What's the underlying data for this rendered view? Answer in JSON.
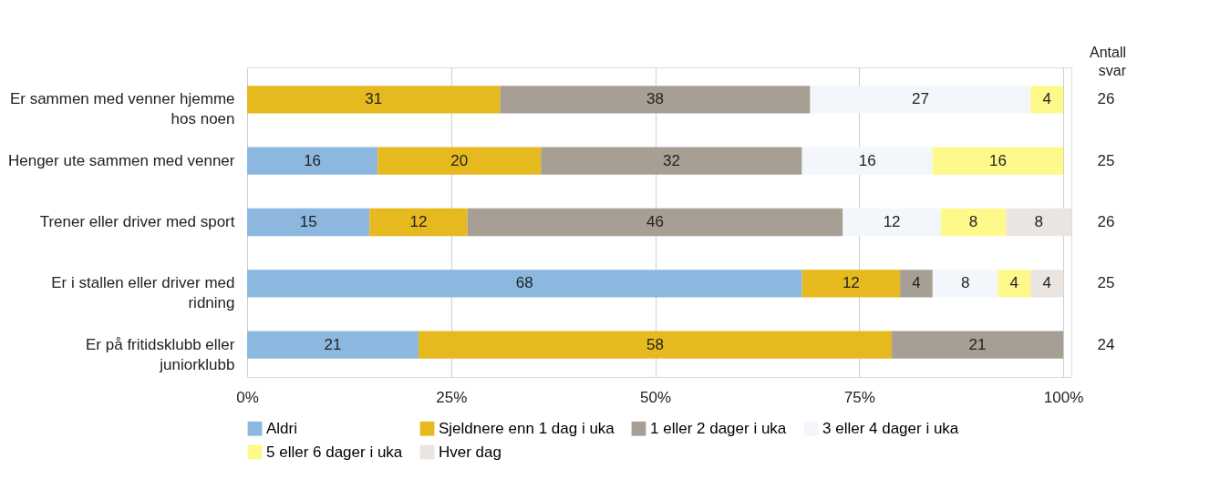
{
  "chart_data": {
    "type": "bar",
    "orientation": "horizontal",
    "stacked": true,
    "data_labels": true,
    "grid": "x",
    "legend": "bottom",
    "categories": [
      "Er sammen med venner hjemme hos noen",
      "Henger ute sammen med venner",
      "Trener eller driver med sport",
      "Er i stallen eller driver med ridning",
      "Er på fritidsklubb eller juniorklubb"
    ],
    "y2_categories": [
      "26",
      "25",
      "26",
      "25",
      "24"
    ],
    "y2label": "Antall svar",
    "xlim": [
      0,
      101
    ],
    "xticks": [
      {
        "value": 0,
        "label": "0%"
      },
      {
        "value": 25,
        "label": "25%"
      },
      {
        "value": 50,
        "label": "50%"
      },
      {
        "value": 75,
        "label": "75%"
      },
      {
        "value": 100,
        "label": "100%"
      }
    ],
    "series": [
      {
        "name": "Aldri",
        "color": "#8cb8e0",
        "values": [
          null,
          16,
          15,
          68,
          21
        ]
      },
      {
        "name": "Sjeldnere enn 1 dag i uka",
        "color": "#e6b91e",
        "values": [
          31,
          20,
          12,
          12,
          58
        ]
      },
      {
        "name": "1 eller 2 dager i uka",
        "color": "#a89f94",
        "values": [
          38,
          32,
          46,
          4,
          21
        ]
      },
      {
        "name": "3 eller 4 dager i uka",
        "color": "#f3f7fb",
        "values": [
          27,
          16,
          12,
          8,
          null
        ]
      },
      {
        "name": "5 eller 6 dager i uka",
        "color": "#fdf98a",
        "values": [
          4,
          16,
          8,
          4,
          null
        ]
      },
      {
        "name": "Hver dag",
        "color": "#ebe5e2",
        "values": [
          null,
          null,
          8,
          4,
          null
        ]
      }
    ]
  }
}
